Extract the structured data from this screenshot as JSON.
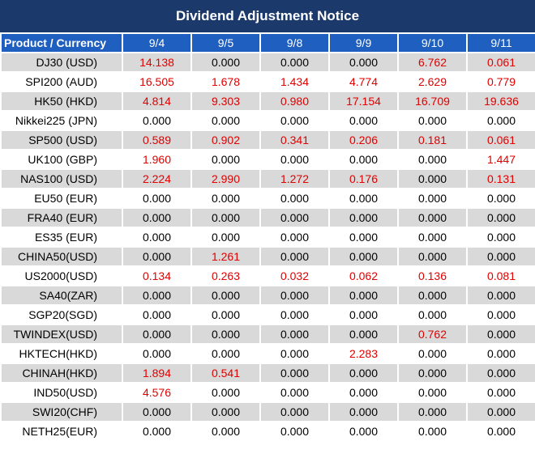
{
  "header": {
    "title": "Dividend Adjustment Notice"
  },
  "table": {
    "columns": [
      "Product / Currency",
      "9/4",
      "9/5",
      "9/8",
      "9/9",
      "9/10",
      "9/11"
    ],
    "rows": [
      [
        "DJ30 (USD)",
        "14.138",
        "0.000",
        "0.000",
        "0.000",
        "6.762",
        "0.061"
      ],
      [
        "SPI200 (AUD)",
        "16.505",
        "1.678",
        "1.434",
        "4.774",
        "2.629",
        "0.779"
      ],
      [
        "HK50 (HKD)",
        "4.814",
        "9.303",
        "0.980",
        "17.154",
        "16.709",
        "19.636"
      ],
      [
        "Nikkei225 (JPN)",
        "0.000",
        "0.000",
        "0.000",
        "0.000",
        "0.000",
        "0.000"
      ],
      [
        "SP500 (USD)",
        "0.589",
        "0.902",
        "0.341",
        "0.206",
        "0.181",
        "0.061"
      ],
      [
        "UK100 (GBP)",
        "1.960",
        "0.000",
        "0.000",
        "0.000",
        "0.000",
        "1.447"
      ],
      [
        "NAS100 (USD)",
        "2.224",
        "2.990",
        "1.272",
        "0.176",
        "0.000",
        "0.131"
      ],
      [
        "EU50 (EUR)",
        "0.000",
        "0.000",
        "0.000",
        "0.000",
        "0.000",
        "0.000"
      ],
      [
        "FRA40 (EUR)",
        "0.000",
        "0.000",
        "0.000",
        "0.000",
        "0.000",
        "0.000"
      ],
      [
        "ES35 (EUR)",
        "0.000",
        "0.000",
        "0.000",
        "0.000",
        "0.000",
        "0.000"
      ],
      [
        "CHINA50(USD)",
        "0.000",
        "1.261",
        "0.000",
        "0.000",
        "0.000",
        "0.000"
      ],
      [
        "US2000(USD)",
        "0.134",
        "0.263",
        "0.032",
        "0.062",
        "0.136",
        "0.081"
      ],
      [
        "SA40(ZAR)",
        "0.000",
        "0.000",
        "0.000",
        "0.000",
        "0.000",
        "0.000"
      ],
      [
        "SGP20(SGD)",
        "0.000",
        "0.000",
        "0.000",
        "0.000",
        "0.000",
        "0.000"
      ],
      [
        "TWINDEX(USD)",
        "0.000",
        "0.000",
        "0.000",
        "0.000",
        "0.762",
        "0.000"
      ],
      [
        "HKTECH(HKD)",
        "0.000",
        "0.000",
        "0.000",
        "2.283",
        "0.000",
        "0.000"
      ],
      [
        "CHINAH(HKD)",
        "1.894",
        "0.541",
        "0.000",
        "0.000",
        "0.000",
        "0.000"
      ],
      [
        "IND50(USD)",
        "4.576",
        "0.000",
        "0.000",
        "0.000",
        "0.000",
        "0.000"
      ],
      [
        "SWI20(CHF)",
        "0.000",
        "0.000",
        "0.000",
        "0.000",
        "0.000",
        "0.000"
      ],
      [
        "NETH25(EUR)",
        "0.000",
        "0.000",
        "0.000",
        "0.000",
        "0.000",
        "0.000"
      ]
    ]
  }
}
